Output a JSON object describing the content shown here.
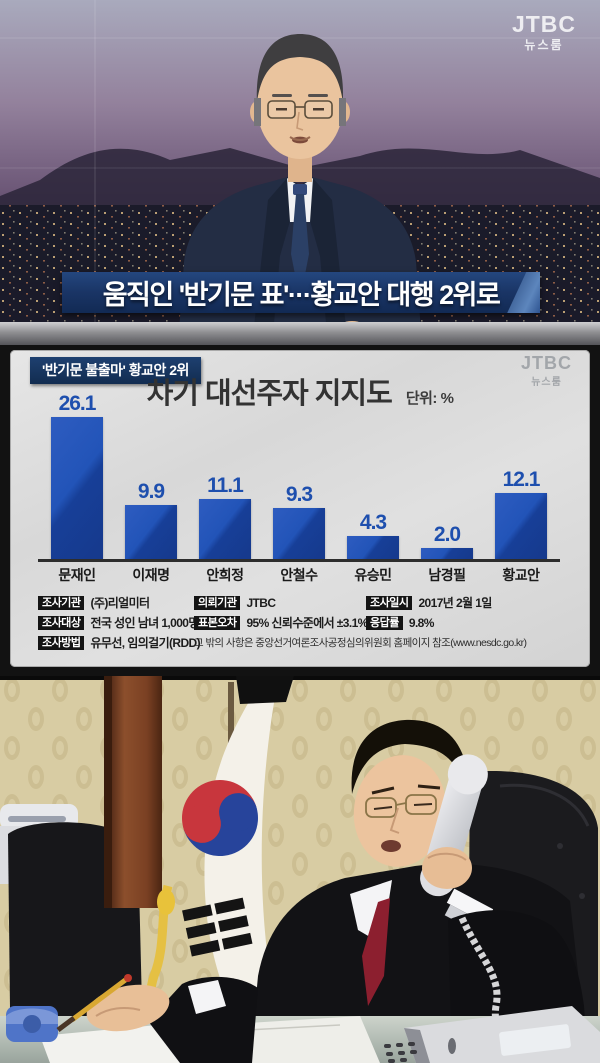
{
  "broadcast": {
    "channel": "JTBC",
    "program": "뉴스룸",
    "headline": "움직인 '반기문 표'···황교안 대행 2위로"
  },
  "chart_panel": {
    "tag": "'반기문 불출마' 황교안 2위",
    "watermark_channel": "JTBC",
    "watermark_program": "뉴스룸"
  },
  "chart_data": {
    "type": "bar",
    "title": "차기 대선주자 지지도",
    "unit_label": "단위: %",
    "categories": [
      "문재인",
      "이재명",
      "안희정",
      "안철수",
      "유승민",
      "남경필",
      "황교안"
    ],
    "values": [
      26.1,
      9.9,
      11.1,
      9.3,
      4.3,
      2.0,
      12.1
    ],
    "xlabel": "",
    "ylabel": "",
    "ylim": [
      0,
      30
    ],
    "grid": false,
    "legend": false,
    "bar_color": "#1d4cae",
    "value_label_color": "#1e4fae"
  },
  "survey": {
    "rows": [
      [
        {
          "label": "조사기관",
          "text": "(주)리얼미터"
        },
        {
          "label": "의뢰기관",
          "text": "JTBC"
        },
        {
          "label": "조사일시",
          "text": "2017년 2월 1일"
        }
      ],
      [
        {
          "label": "조사대상",
          "text": "전국 성인 남녀 1,000명"
        },
        {
          "label": "표본오차",
          "text": "95% 신뢰수준에서 ±3.1%p"
        },
        {
          "label": "응답률",
          "text": "9.8%"
        }
      ],
      [
        {
          "label": "조사방법",
          "text": "유무선, 임의걸기(RDD)"
        }
      ]
    ],
    "footnote": "그 밖의 사항은 중앙선거여론조사공정심의위원회 홈페이지 참조(www.nesdc.go.kr)"
  },
  "colors": {
    "headline_banner_bg": "#1a3566",
    "tag_badge_bg": "#17365e",
    "info_badge_bg": "#141414",
    "bar_blue": "#1d4cae",
    "flag_red": "#c8363d",
    "flag_blue": "#27449b"
  }
}
